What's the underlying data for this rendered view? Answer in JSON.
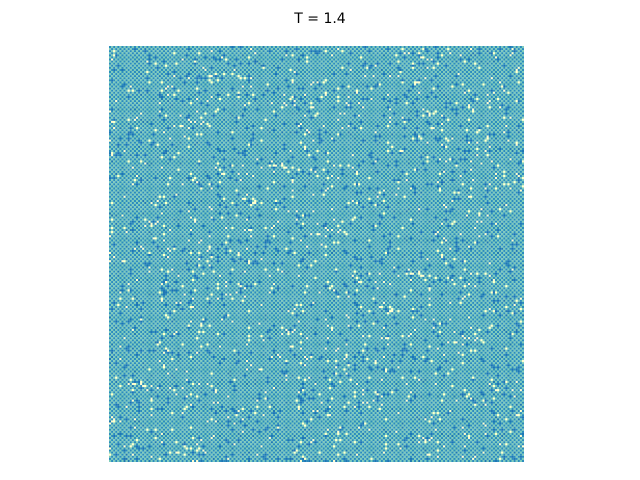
{
  "chart_data": {
    "type": "heatmap",
    "title": "T = 1.4",
    "axes_visible": false,
    "grid_size": [
      200,
      200
    ],
    "colormap": {
      "name": "checkerboard-spin-lattice",
      "colors": [
        "#1f77b4",
        "#2b8cbe",
        "#7fcdbb",
        "#ffffcc"
      ]
    },
    "pattern": {
      "base": "checkerboard",
      "defect_fraction": 0.08
    }
  }
}
